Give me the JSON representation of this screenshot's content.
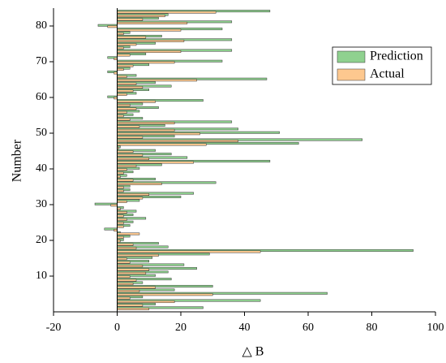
{
  "chart_data": {
    "type": "hbar",
    "xlabel": "△ B",
    "ylabel": "Number",
    "y": [
      1,
      2,
      3,
      4,
      5,
      6,
      7,
      8,
      9,
      10,
      11,
      12,
      13,
      14,
      15,
      16,
      17,
      18,
      19,
      20,
      21,
      22,
      23,
      24,
      25,
      26,
      27,
      28,
      29,
      30,
      31,
      32,
      33,
      34,
      35,
      36,
      37,
      38,
      39,
      40,
      41,
      42,
      43,
      44,
      45,
      46,
      47,
      48,
      49,
      50,
      51,
      52,
      53,
      54,
      55,
      56,
      57,
      58,
      59,
      60,
      61,
      62,
      63,
      64,
      65,
      66,
      67,
      68,
      69,
      70,
      71,
      72,
      73,
      74,
      75,
      76,
      77,
      78,
      79,
      80,
      81,
      82,
      83,
      84
    ],
    "series": [
      {
        "name": "Prediction",
        "color": "#8fd18f",
        "values": [
          27,
          12,
          45,
          8,
          66,
          18,
          30,
          8,
          17,
          12,
          16,
          25,
          21,
          10,
          11,
          29,
          93,
          16,
          13,
          2,
          4,
          1,
          -4,
          4,
          5,
          9,
          5,
          6,
          2,
          -7,
          7,
          20,
          24,
          4,
          4,
          31,
          12,
          3,
          5,
          7,
          14,
          48,
          22,
          17,
          12,
          1,
          57,
          77,
          18,
          51,
          38,
          15,
          36,
          8,
          5,
          7,
          13,
          8,
          27,
          -3,
          6,
          10,
          17,
          12,
          47,
          6,
          -3,
          4,
          10,
          33,
          -3,
          9,
          36,
          4,
          12,
          36,
          14,
          4,
          33,
          -6,
          36,
          13,
          16,
          48
        ]
      },
      {
        "name": "Actual",
        "color": "#fdc88f",
        "values": [
          10,
          8,
          18,
          4,
          30,
          7,
          12,
          5,
          6,
          4,
          9,
          10,
          8,
          4,
          3,
          13,
          45,
          6,
          5,
          1,
          2,
          7,
          -1,
          2,
          2,
          3,
          2,
          3,
          1,
          -2,
          3,
          8,
          10,
          2,
          2,
          14,
          5,
          1,
          2,
          3,
          6,
          24,
          10,
          8,
          5,
          0.5,
          28,
          38,
          8,
          26,
          18,
          7,
          18,
          4,
          2,
          3,
          6,
          4,
          12,
          -1,
          3,
          5,
          8,
          6,
          25,
          3,
          -1,
          2,
          5,
          18,
          -1,
          4,
          20,
          2,
          6,
          21,
          9,
          2,
          20,
          -3,
          22,
          8,
          15,
          31
        ]
      }
    ],
    "xlim": [
      -20,
      100
    ],
    "xticks": [
      -20,
      0,
      20,
      40,
      60,
      80,
      100
    ],
    "ylim": [
      0,
      85
    ],
    "yticks": [
      10,
      20,
      30,
      40,
      50,
      60,
      70,
      80
    ],
    "legend": "upper right"
  }
}
